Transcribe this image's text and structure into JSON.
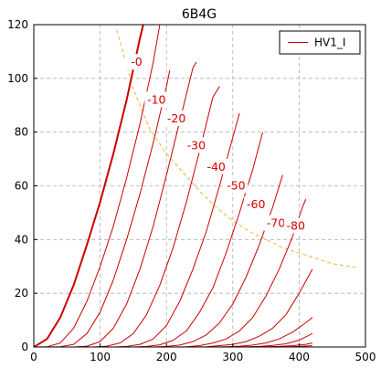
{
  "chart_data": {
    "type": "line",
    "title": "6B4G",
    "xlabel": "",
    "ylabel": "",
    "xlim": [
      0,
      500
    ],
    "ylim": [
      0,
      120
    ],
    "x_ticks": [
      0,
      100,
      200,
      300,
      400,
      500
    ],
    "y_ticks": [
      0,
      20,
      40,
      60,
      80,
      100,
      120
    ],
    "grid": true,
    "grid_style": "dashed",
    "legend": {
      "position": "top-right",
      "entries": [
        "HV1_I"
      ]
    },
    "colors": {
      "curves": "#cc0000",
      "load_line": "#f0b43c",
      "grid": "#b0b0b0"
    },
    "series": [
      {
        "grid_voltage": "-0",
        "points": [
          [
            0,
            0
          ],
          [
            20,
            3
          ],
          [
            40,
            11
          ],
          [
            60,
            23
          ],
          [
            80,
            38
          ],
          [
            100,
            54
          ],
          [
            120,
            72
          ],
          [
            140,
            92
          ],
          [
            160,
            115
          ],
          [
            165,
            120
          ]
        ]
      },
      {
        "grid_voltage": "-10",
        "points": [
          [
            0,
            0
          ],
          [
            20,
            0.1
          ],
          [
            40,
            1.5
          ],
          [
            60,
            7
          ],
          [
            80,
            17
          ],
          [
            100,
            30
          ],
          [
            120,
            45
          ],
          [
            140,
            63
          ],
          [
            160,
            83
          ],
          [
            180,
            106
          ],
          [
            190,
            120
          ]
        ]
      },
      {
        "grid_voltage": "-20",
        "points": [
          [
            20,
            0
          ],
          [
            40,
            0.1
          ],
          [
            60,
            1
          ],
          [
            80,
            5
          ],
          [
            100,
            13
          ],
          [
            120,
            25
          ],
          [
            140,
            40
          ],
          [
            160,
            57
          ],
          [
            180,
            76
          ],
          [
            200,
            97
          ],
          [
            205,
            103
          ]
        ]
      },
      {
        "grid_voltage": "-30",
        "points": [
          [
            60,
            0
          ],
          [
            80,
            0.3
          ],
          [
            100,
            2
          ],
          [
            120,
            7
          ],
          [
            140,
            16
          ],
          [
            160,
            29
          ],
          [
            180,
            45
          ],
          [
            200,
            64
          ],
          [
            220,
            84
          ],
          [
            240,
            104
          ],
          [
            245,
            106
          ]
        ]
      },
      {
        "grid_voltage": "-40",
        "points": [
          [
            90,
            0
          ],
          [
            110,
            0.3
          ],
          [
            130,
            1.5
          ],
          [
            150,
            5
          ],
          [
            170,
            12
          ],
          [
            190,
            23
          ],
          [
            210,
            37
          ],
          [
            230,
            54
          ],
          [
            250,
            73
          ],
          [
            270,
            93
          ],
          [
            280,
            97
          ]
        ]
      },
      {
        "grid_voltage": "-50",
        "points": [
          [
            120,
            0
          ],
          [
            140,
            0.2
          ],
          [
            160,
            1
          ],
          [
            180,
            3
          ],
          [
            200,
            8
          ],
          [
            220,
            17
          ],
          [
            240,
            29
          ],
          [
            260,
            43
          ],
          [
            280,
            60
          ],
          [
            300,
            78
          ],
          [
            310,
            87
          ]
        ]
      },
      {
        "grid_voltage": "-60",
        "points": [
          [
            150,
            0
          ],
          [
            170,
            0.2
          ],
          [
            190,
            0.8
          ],
          [
            210,
            2.5
          ],
          [
            230,
            6
          ],
          [
            250,
            13
          ],
          [
            270,
            22
          ],
          [
            290,
            35
          ],
          [
            310,
            50
          ],
          [
            330,
            66
          ],
          [
            345,
            80
          ]
        ]
      },
      {
        "grid_voltage": "-70",
        "points": [
          [
            180,
            0
          ],
          [
            200,
            0.2
          ],
          [
            220,
            0.7
          ],
          [
            240,
            2
          ],
          [
            260,
            4.5
          ],
          [
            280,
            9
          ],
          [
            300,
            16
          ],
          [
            320,
            26
          ],
          [
            340,
            38
          ],
          [
            360,
            52
          ],
          [
            375,
            64
          ]
        ]
      },
      {
        "grid_voltage": "-80",
        "points": [
          [
            210,
            0
          ],
          [
            230,
            0.1
          ],
          [
            250,
            0.5
          ],
          [
            270,
            1.5
          ],
          [
            290,
            3
          ],
          [
            310,
            6
          ],
          [
            330,
            11
          ],
          [
            350,
            19
          ],
          [
            370,
            29
          ],
          [
            390,
            41
          ],
          [
            405,
            52
          ],
          [
            410,
            55
          ]
        ]
      },
      {
        "grid_voltage": "",
        "points": [
          [
            240,
            0
          ],
          [
            260,
            0.1
          ],
          [
            280,
            0.5
          ],
          [
            300,
            1
          ],
          [
            320,
            2
          ],
          [
            340,
            4
          ],
          [
            360,
            7
          ],
          [
            380,
            12
          ],
          [
            400,
            20
          ],
          [
            420,
            29
          ]
        ]
      },
      {
        "grid_voltage": "",
        "points": [
          [
            270,
            0
          ],
          [
            290,
            0.1
          ],
          [
            310,
            0.3
          ],
          [
            330,
            0.7
          ],
          [
            350,
            1.5
          ],
          [
            370,
            3
          ],
          [
            390,
            5.5
          ],
          [
            410,
            9
          ],
          [
            420,
            11
          ]
        ]
      },
      {
        "grid_voltage": "",
        "points": [
          [
            300,
            0
          ],
          [
            320,
            0.1
          ],
          [
            340,
            0.2
          ],
          [
            360,
            0.6
          ],
          [
            380,
            1.2
          ],
          [
            400,
            2.5
          ],
          [
            420,
            5
          ]
        ]
      },
      {
        "grid_voltage": "",
        "points": [
          [
            330,
            0
          ],
          [
            350,
            0.1
          ],
          [
            370,
            0.2
          ],
          [
            390,
            0.5
          ],
          [
            410,
            1
          ],
          [
            420,
            1.5
          ]
        ]
      },
      {
        "grid_voltage": "",
        "points": [
          [
            360,
            0
          ],
          [
            380,
            0.05
          ],
          [
            400,
            0.2
          ],
          [
            420,
            0.5
          ]
        ]
      }
    ],
    "load_line": {
      "points": [
        [
          125,
          118
        ],
        [
          150,
          96
        ],
        [
          175,
          81
        ],
        [
          200,
          72
        ],
        [
          225,
          65
        ],
        [
          250,
          58
        ],
        [
          275,
          52
        ],
        [
          300,
          47
        ],
        [
          325,
          43
        ],
        [
          350,
          40
        ],
        [
          375,
          37
        ],
        [
          400,
          35
        ],
        [
          425,
          33
        ],
        [
          450,
          31
        ],
        [
          475,
          30
        ],
        [
          490,
          29.5
        ]
      ]
    },
    "annotations": [
      {
        "text": "-0",
        "x": 155,
        "y": 106
      },
      {
        "text": "-10",
        "x": 185,
        "y": 92
      },
      {
        "text": "-20",
        "x": 215,
        "y": 85
      },
      {
        "text": "-30",
        "x": 245,
        "y": 75
      },
      {
        "text": "-40",
        "x": 275,
        "y": 67
      },
      {
        "text": "-50",
        "x": 305,
        "y": 60
      },
      {
        "text": "-60",
        "x": 335,
        "y": 53
      },
      {
        "text": "-70",
        "x": 365,
        "y": 46
      },
      {
        "text": "-80",
        "x": 395,
        "y": 45
      }
    ]
  }
}
